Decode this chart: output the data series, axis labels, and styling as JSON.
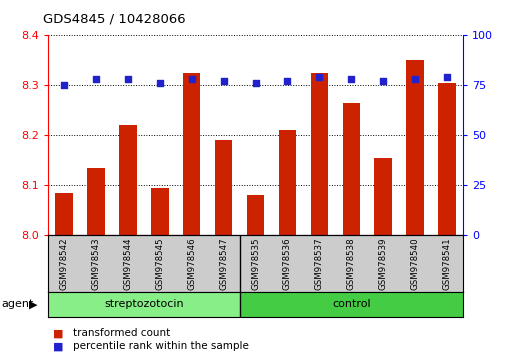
{
  "title": "GDS4845 / 10428066",
  "samples": [
    "GSM978542",
    "GSM978543",
    "GSM978544",
    "GSM978545",
    "GSM978546",
    "GSM978547",
    "GSM978535",
    "GSM978536",
    "GSM978537",
    "GSM978538",
    "GSM978539",
    "GSM978540",
    "GSM978541"
  ],
  "red_values": [
    8.085,
    8.135,
    8.22,
    8.095,
    8.325,
    8.19,
    8.08,
    8.21,
    8.325,
    8.265,
    8.155,
    8.35,
    8.305
  ],
  "blue_values": [
    75,
    78,
    78,
    76,
    78,
    77,
    76,
    77,
    79,
    78,
    77,
    78,
    79
  ],
  "ylim_left": [
    8.0,
    8.4
  ],
  "ylim_right": [
    0,
    100
  ],
  "yticks_left": [
    8.0,
    8.1,
    8.2,
    8.3,
    8.4
  ],
  "yticks_right": [
    0,
    25,
    50,
    75,
    100
  ],
  "bar_color": "#cc2200",
  "dot_color": "#2222cc",
  "strep_color": "#88ee88",
  "control_color": "#44cc44",
  "bg_color": "#cccccc",
  "legend_red_label": "transformed count",
  "legend_blue_label": "percentile rank within the sample",
  "agent_label": "agent",
  "n_strep": 6,
  "n_ctrl": 7
}
